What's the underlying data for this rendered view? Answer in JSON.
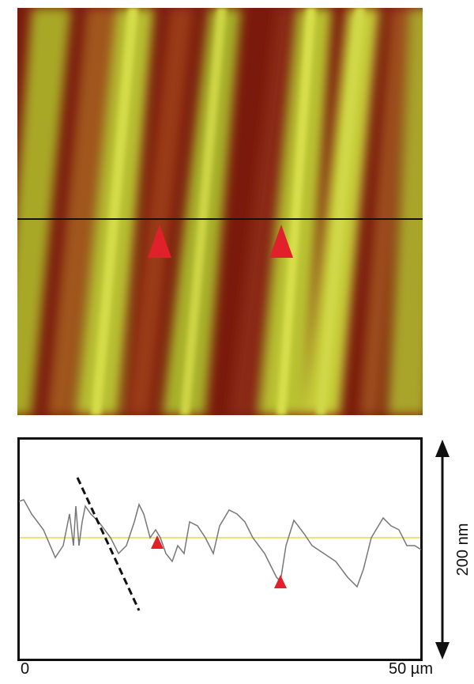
{
  "profile": {
    "x_start_label": "0",
    "x_end_label": "50 µm",
    "height_scale_label": "200 nm"
  }
}
